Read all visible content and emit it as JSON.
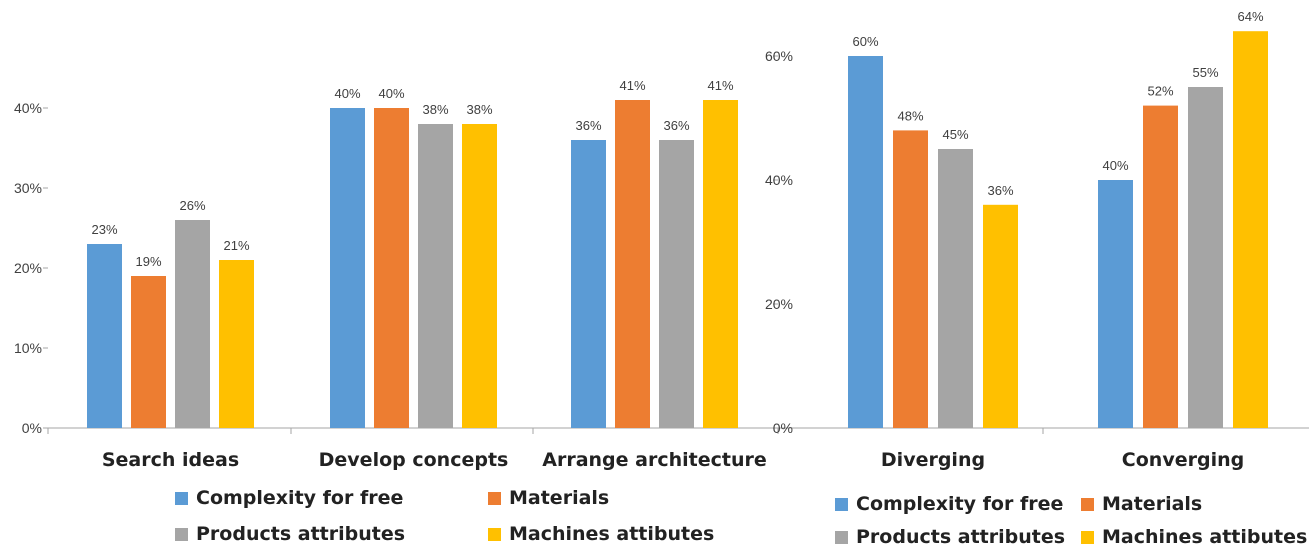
{
  "colors": {
    "Complexity for free": "#5B9BD5",
    "Materials": "#ED7D31",
    "Products attributes": "#A5A5A5",
    "Machines attibutes": "#FFC000"
  },
  "chart_data": [
    {
      "type": "bar",
      "categories": [
        "Search ideas",
        "Develop concepts",
        "Arrange architecture"
      ],
      "series": [
        {
          "name": "Complexity for free",
          "values": [
            23,
            40,
            36
          ],
          "labels": [
            "23%",
            "40%",
            "36%"
          ]
        },
        {
          "name": "Materials",
          "values": [
            19,
            40,
            41
          ],
          "labels": [
            "19%",
            "40%",
            "41%"
          ]
        },
        {
          "name": "Products attributes",
          "values": [
            26,
            38,
            36
          ],
          "labels": [
            "26%",
            "38%",
            "36%"
          ]
        },
        {
          "name": "Machines attibutes",
          "values": [
            21,
            38,
            41
          ],
          "labels": [
            "21%",
            "38%",
            "41%"
          ]
        }
      ],
      "yticks": [
        "0%",
        "10%",
        "20%",
        "30%",
        "40%"
      ],
      "ytick_values": [
        0,
        10,
        20,
        30,
        40
      ],
      "ylim": [
        0,
        50
      ],
      "grid": false,
      "legend_position": "bottom"
    },
    {
      "type": "bar",
      "categories": [
        "Diverging",
        "Converging"
      ],
      "series": [
        {
          "name": "Complexity for free",
          "values": [
            60,
            40
          ],
          "labels": [
            "60%",
            "40%"
          ]
        },
        {
          "name": "Materials",
          "values": [
            48,
            52
          ],
          "labels": [
            "48%",
            "52%"
          ]
        },
        {
          "name": "Products attributes",
          "values": [
            45,
            55
          ],
          "labels": [
            "45%",
            "55%"
          ]
        },
        {
          "name": "Machines attibutes",
          "values": [
            36,
            64
          ],
          "labels": [
            "36%",
            "64%"
          ]
        }
      ],
      "yticks": [
        "0%",
        "20%",
        "40%",
        "60%"
      ],
      "ytick_values": [
        0,
        20,
        40,
        60
      ],
      "ylim": [
        0,
        68
      ],
      "grid": false,
      "legend_position": "bottom"
    }
  ],
  "legend": {
    "items": [
      "Complexity for free",
      "Materials",
      "Products attributes",
      "Machines attibutes"
    ]
  }
}
